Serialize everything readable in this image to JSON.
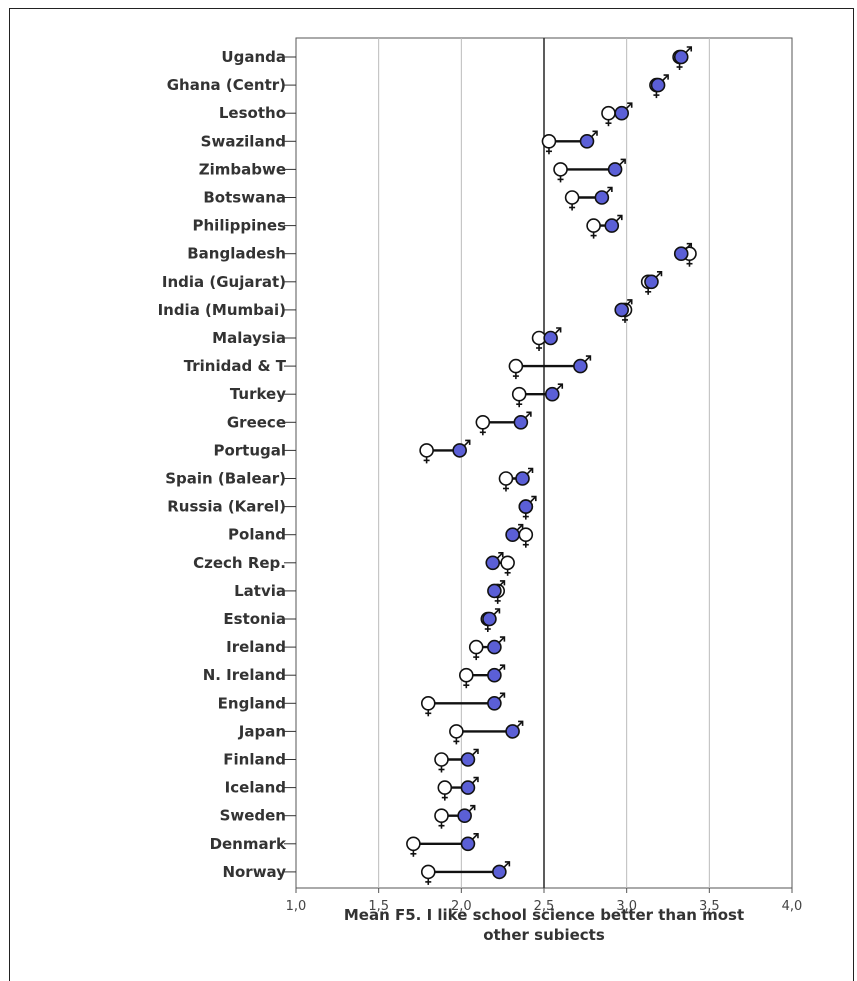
{
  "chart_data": {
    "type": "dot-range",
    "xlabel_lines": [
      "Mean F5. I like school science better than most",
      "other subiects"
    ],
    "xlim": [
      1.0,
      4.0
    ],
    "xticks": [
      {
        "value": 1.0,
        "label": "1,0"
      },
      {
        "value": 1.5,
        "label": "1,5"
      },
      {
        "value": 2.0,
        "label": "2,0"
      },
      {
        "value": 2.5,
        "label": "2,5"
      },
      {
        "value": 3.0,
        "label": "3,0"
      },
      {
        "value": 3.5,
        "label": "3,5"
      },
      {
        "value": 4.0,
        "label": "4,0"
      }
    ],
    "reference_line": 2.5,
    "grid": true,
    "series": [
      {
        "name": "Girls",
        "symbol": "female",
        "color": "#ffffff"
      },
      {
        "name": "Boys",
        "symbol": "male",
        "color": "#5b5fd6"
      }
    ],
    "categories": [
      "Uganda",
      "Ghana (Centr)",
      "Lesotho",
      "Swaziland",
      "Zimbabwe",
      "Botswana",
      "Philippines",
      "Bangladesh",
      "India (Gujarat)",
      "India (Mumbai)",
      "Malaysia",
      "Trinidad & T",
      "Turkey",
      "Greece",
      "Portugal",
      "Spain (Balear)",
      "Russia (Karel)",
      "Poland",
      "Czech Rep.",
      "Latvia",
      "Estonia",
      "Ireland",
      "N. Ireland",
      "England",
      "Japan",
      "Finland",
      "Iceland",
      "Sweden",
      "Denmark",
      "Norway"
    ],
    "girls": [
      3.32,
      3.18,
      2.89,
      2.53,
      2.6,
      2.67,
      2.8,
      3.38,
      3.13,
      2.99,
      2.47,
      2.33,
      2.35,
      2.13,
      1.79,
      2.27,
      2.39,
      2.39,
      2.28,
      2.22,
      2.16,
      2.09,
      2.03,
      1.8,
      1.97,
      1.88,
      1.9,
      1.88,
      1.71,
      1.8
    ],
    "boys": [
      3.33,
      3.19,
      2.97,
      2.76,
      2.93,
      2.85,
      2.91,
      3.33,
      3.15,
      2.97,
      2.54,
      2.72,
      2.55,
      2.36,
      1.99,
      2.37,
      2.39,
      2.31,
      2.19,
      2.2,
      2.17,
      2.2,
      2.2,
      2.2,
      2.31,
      2.04,
      2.04,
      2.02,
      2.04,
      2.23
    ]
  }
}
